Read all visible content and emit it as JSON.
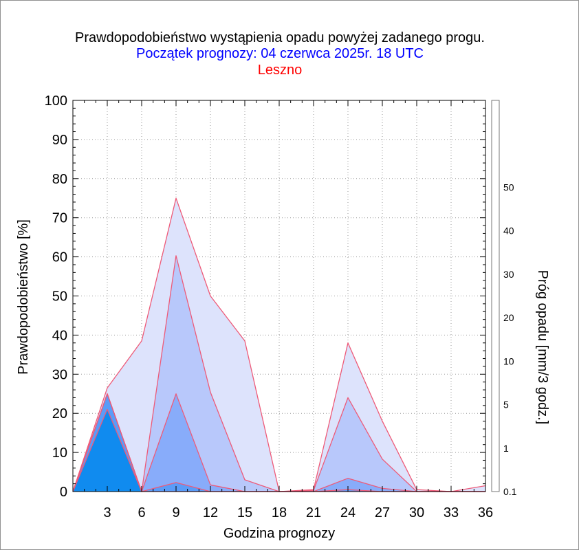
{
  "chart_data": {
    "type": "area",
    "title": "Prawdopodobieństwo wystąpienia opadu powyżej zadanego progu.",
    "subtitle": "Początek prognozy: 04 czerwca 2025r. 18 UTC",
    "location": "Leszno",
    "xlabel": "Godzina prognozy",
    "ylabel": "Prawdopodobieństwo [%]",
    "colorbar_label": "Próg opadu [mm/3 godz.]",
    "xlim": [
      0,
      36
    ],
    "ylim": [
      0,
      100
    ],
    "xticks": [
      3,
      6,
      9,
      12,
      15,
      18,
      21,
      24,
      27,
      30,
      33,
      36
    ],
    "yticks": [
      0,
      10,
      20,
      30,
      40,
      50,
      60,
      70,
      80,
      90,
      100
    ],
    "grid": true,
    "x": [
      0,
      3,
      6,
      9,
      12,
      15,
      18,
      21,
      24,
      27,
      30,
      33,
      36
    ],
    "colorbar": {
      "levels": [
        0.1,
        1,
        5,
        10,
        20,
        30,
        40,
        50,
        60
      ],
      "labels": [
        "0.1",
        "1",
        "5",
        "10",
        "20",
        "30",
        "40",
        "50"
      ],
      "colors": [
        "#e3e8fd",
        "#ccd6fc",
        "#b3c4fb",
        "#92b3fc",
        "#57a2fd",
        "#0d92f9",
        "#0d7ef0",
        "#0c65dd",
        "#0b48c0"
      ]
    },
    "series": [
      {
        "threshold": 0.1,
        "color": "#dde3fc",
        "values": [
          0,
          26.5,
          38.5,
          75,
          50,
          38.5,
          0,
          0.5,
          38,
          18,
          0.5,
          0,
          1.5
        ]
      },
      {
        "threshold": 1,
        "color": "#b8c8fb",
        "values": [
          0,
          25,
          0,
          60.3,
          25.4,
          3,
          0,
          0.3,
          24,
          8.3,
          0,
          0,
          0
        ]
      },
      {
        "threshold": 5,
        "color": "#88acfa",
        "values": [
          0,
          25,
          0,
          25,
          1.7,
          0,
          0,
          0,
          3.4,
          0.8,
          0,
          0,
          0
        ]
      },
      {
        "threshold": 10,
        "color": "#5a9cf8",
        "values": [
          0,
          25,
          0,
          2.3,
          0,
          0,
          0,
          0,
          0.5,
          0,
          0,
          0,
          0
        ]
      },
      {
        "threshold": 20,
        "color": "#108bef",
        "values": [
          0,
          21,
          0,
          0,
          0,
          0,
          0,
          0,
          0,
          0,
          0,
          0,
          0
        ]
      }
    ]
  }
}
